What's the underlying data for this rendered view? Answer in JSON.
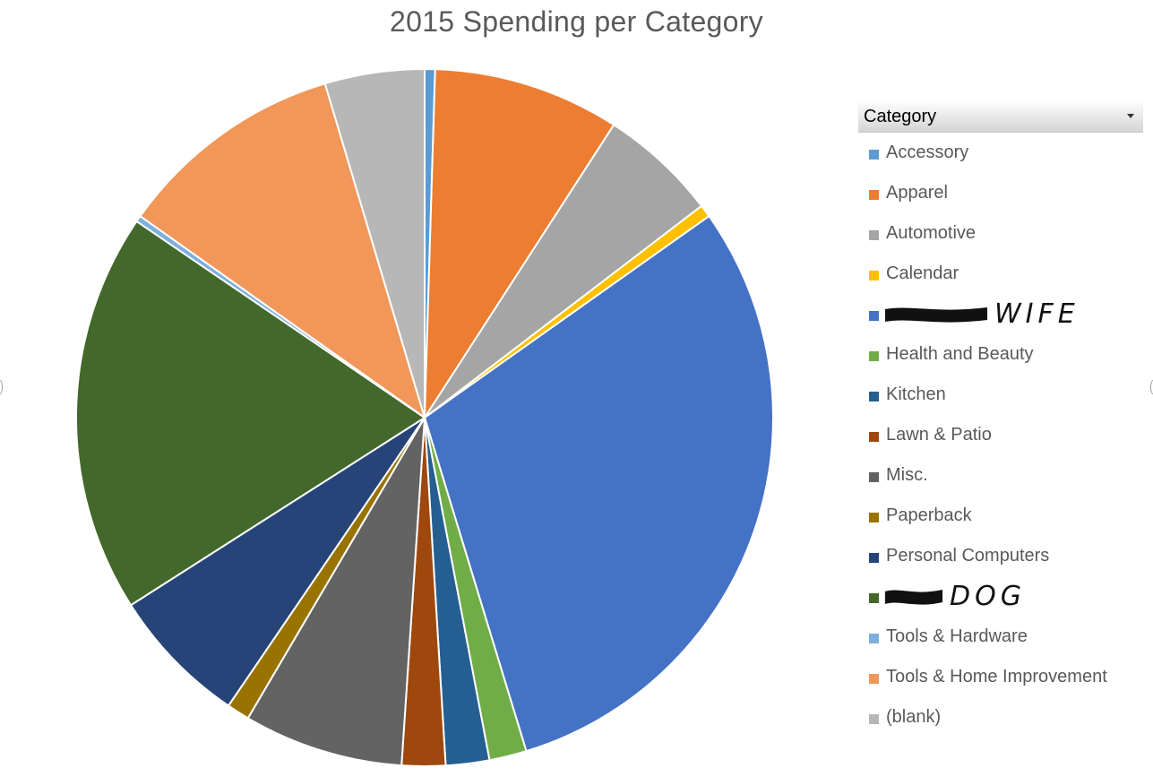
{
  "chart_data": {
    "type": "pie",
    "title": "2015 Spending per Category",
    "legend_placement": "right",
    "legend_header": "Category",
    "categories": [
      "Accessory",
      "Apparel",
      "Automotive",
      "Calendar",
      "WIFE",
      "Health and Beauty",
      "Kitchen",
      "Lawn & Patio",
      "Misc.",
      "Paperback",
      "Personal Computers",
      "DOG",
      "Tools & Hardware",
      "Tools & Home Improvement",
      "(blank)"
    ],
    "values": [
      0.5,
      9.0,
      5.7,
      0.6,
      31.3,
      1.8,
      2.1,
      2.1,
      7.7,
      1.1,
      6.7,
      19.3,
      0.3,
      11.0,
      4.8
    ],
    "colors": [
      "#5B9BD5",
      "#ED7D31",
      "#A5A5A5",
      "#FFC000",
      "#4472C4",
      "#70AD47",
      "#255E91",
      "#9E480E",
      "#636363",
      "#997300",
      "#264478",
      "#43682B",
      "#7CAFDD",
      "#F1975A",
      "#B7B7B7"
    ],
    "redacted_categories": [
      4,
      11
    ]
  }
}
